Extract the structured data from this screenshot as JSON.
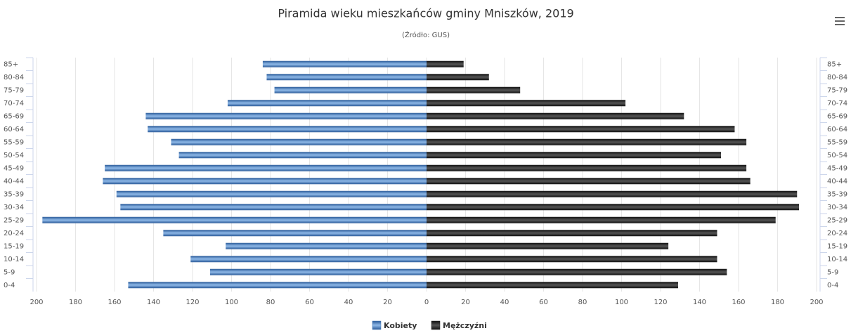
{
  "chart_data": {
    "type": "pyramid",
    "title": "Piramida wieku mieszkańców gminy Mniszków, 2019",
    "subtitle": "(Źródło: GUS)",
    "categories": [
      "85+",
      "80-84",
      "75-79",
      "70-74",
      "65-69",
      "60-64",
      "55-59",
      "50-54",
      "45-49",
      "40-44",
      "35-39",
      "30-34",
      "25-29",
      "20-24",
      "15-19",
      "10-14",
      "5-9",
      "0-4"
    ],
    "series": [
      {
        "name": "Kobiety",
        "color": "#3d72b4",
        "side": "left",
        "values": [
          84,
          82,
          78,
          102,
          144,
          143,
          131,
          127,
          165,
          166,
          159,
          157,
          197,
          135,
          103,
          121,
          111,
          153
        ]
      },
      {
        "name": "Mężczyźni",
        "color": "#1e1e1e",
        "side": "right",
        "values": [
          19,
          32,
          48,
          102,
          132,
          158,
          164,
          151,
          164,
          166,
          190,
          191,
          179,
          149,
          124,
          149,
          154,
          129
        ]
      }
    ],
    "xlim": [
      -200,
      200
    ],
    "xticks": [
      {
        "value": -200,
        "label": "200"
      },
      {
        "value": -180,
        "label": "180"
      },
      {
        "value": -160,
        "label": "160"
      },
      {
        "value": -140,
        "label": "140"
      },
      {
        "value": -120,
        "label": "120"
      },
      {
        "value": -100,
        "label": "100"
      },
      {
        "value": -80,
        "label": "80"
      },
      {
        "value": -60,
        "label": "60"
      },
      {
        "value": -40,
        "label": "40"
      },
      {
        "value": -20,
        "label": "20"
      },
      0,
      20,
      40,
      60,
      80,
      100,
      120,
      140,
      160,
      180,
      200
    ],
    "grid": true
  }
}
